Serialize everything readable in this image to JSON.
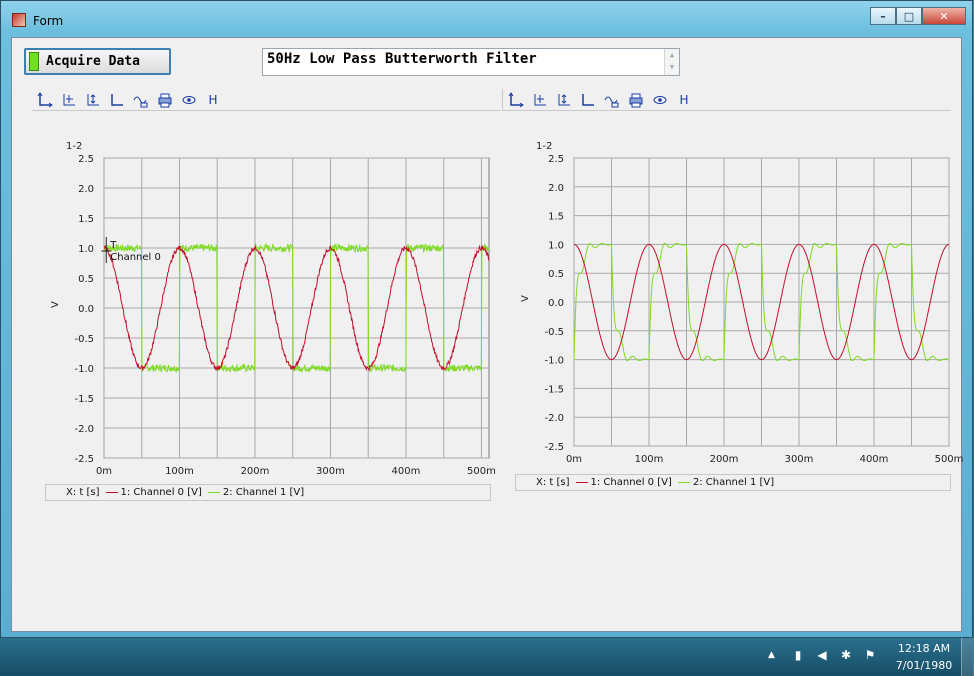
{
  "window": {
    "title": "Form"
  },
  "acquire_button": {
    "label": "Acquire Data"
  },
  "filter_box": {
    "text": "50Hz Low Pass Butterworth Filter"
  },
  "toolbar": {
    "h_label": "H"
  },
  "colors": {
    "channel0": "#c0102a",
    "channel1": "#7ddc1f",
    "grid": "#a8a8a8",
    "plot_bg": "#f0f0f0"
  },
  "chart_data": [
    {
      "type": "line",
      "title": "1-2",
      "ylabel": "V",
      "xlabel": "",
      "x_ticks": [
        "0m",
        "100m",
        "200m",
        "300m",
        "400m",
        "500m"
      ],
      "y_ticks": [
        "2.5",
        "2.0",
        "1.5",
        "1.0",
        "0.5",
        "0.0",
        "-0.5",
        "-1.0",
        "-1.5",
        "-2.0",
        "-2.5"
      ],
      "xlim": [
        0,
        0.51
      ],
      "ylim": [
        -2.5,
        2.5
      ],
      "grid": true,
      "cursor": {
        "label": "T",
        "name": "Channel 0",
        "x": 0.003,
        "y": 0.95
      },
      "series": [
        {
          "name": "Channel 0",
          "kind": "noisy_sine",
          "freq_hz": 10,
          "amplitude": 1,
          "phase_deg": 90,
          "noise": 0.04
        },
        {
          "name": "Channel 1",
          "kind": "noisy_square",
          "freq_hz": 10,
          "amplitude": 1,
          "noise": 0.06
        }
      ],
      "legend": {
        "x_label": "X: t [s]",
        "items": [
          "1: Channel 0 [V]",
          "2: Channel 1 [V]"
        ]
      }
    },
    {
      "type": "line",
      "title": "1-2",
      "ylabel": "V",
      "xlabel": "",
      "x_ticks": [
        "0m",
        "100m",
        "200m",
        "300m",
        "400m",
        "500m"
      ],
      "y_ticks": [
        "2.5",
        "2.0",
        "1.5",
        "1.0",
        "0.5",
        "0.0",
        "-0.5",
        "-1.0",
        "-1.5",
        "-2.0",
        "-2.5"
      ],
      "xlim": [
        0,
        0.5
      ],
      "ylim": [
        -2.5,
        2.5
      ],
      "grid": true,
      "series": [
        {
          "name": "Channel 0",
          "kind": "sine",
          "freq_hz": 10,
          "amplitude": 1,
          "phase_deg": 90
        },
        {
          "name": "Channel 1",
          "kind": "filtered_square",
          "freq_hz": 10,
          "amplitude": 1,
          "overshoot": 0.22
        }
      ],
      "legend": {
        "x_label": "X: t [s]",
        "items": [
          "1: Channel 0 [V]",
          "2: Channel 1 [V]"
        ]
      }
    }
  ],
  "taskbar": {
    "time": "12:18 AM",
    "date": "7/01/1980"
  }
}
